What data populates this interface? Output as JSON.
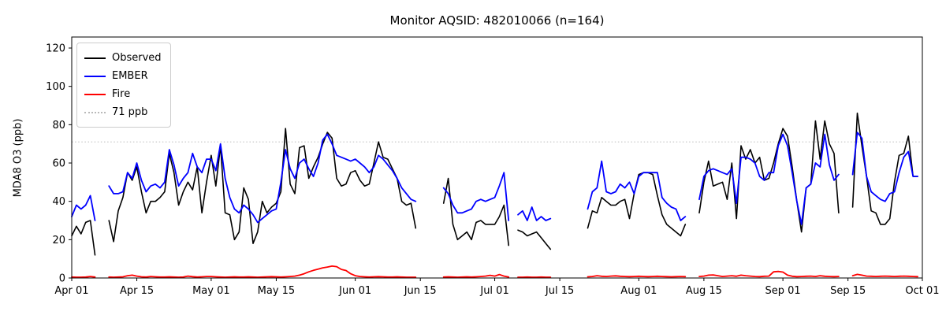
{
  "figure": {
    "title": "Monitor AQSID: 482010066 (n=164)",
    "ylabel": "MDA8 O3 (ppb)"
  },
  "legend": {
    "entries": [
      {
        "label": "Observed",
        "color": "#000000",
        "style": "solid"
      },
      {
        "label": "EMBER",
        "color": "#0000ff",
        "style": "solid"
      },
      {
        "label": "Fire",
        "color": "#ff0000",
        "style": "solid"
      },
      {
        "label": "71 ppb",
        "color": "#c9c9c9",
        "style": "dotted"
      }
    ]
  },
  "chart_data": {
    "type": "line",
    "title": "Monitor AQSID: 482010066 (n=164)",
    "xlabel": "",
    "ylabel": "MDA8 O3 (ppb)",
    "ylim": [
      0,
      126
    ],
    "yticks": [
      0,
      20,
      40,
      60,
      80,
      100,
      120
    ],
    "x_is_days_from": "Apr 01",
    "xlim_days": [
      0,
      183
    ],
    "xticks": [
      {
        "day": 0,
        "label": "Apr 01"
      },
      {
        "day": 14,
        "label": "Apr 15"
      },
      {
        "day": 30,
        "label": "May 01"
      },
      {
        "day": 44,
        "label": "May 15"
      },
      {
        "day": 61,
        "label": "Jun 01"
      },
      {
        "day": 75,
        "label": "Jun 15"
      },
      {
        "day": 91,
        "label": "Jul 01"
      },
      {
        "day": 105,
        "label": "Jul 15"
      },
      {
        "day": 122,
        "label": "Aug 01"
      },
      {
        "day": 136,
        "label": "Aug 15"
      },
      {
        "day": 153,
        "label": "Sep 01"
      },
      {
        "day": 167,
        "label": "Sep 15"
      },
      {
        "day": 183,
        "label": "Oct 01"
      }
    ],
    "threshold": {
      "value": 71,
      "label": "71 ppb",
      "color": "#c9c9c9",
      "style": "dotted"
    },
    "grid": false,
    "legend_position": "upper left",
    "n_observations": 164,
    "series": [
      {
        "name": "Observed",
        "color": "#000000",
        "width": 1.6,
        "values": [
          22,
          27,
          23,
          29,
          30,
          12,
          null,
          null,
          30,
          19,
          35,
          42,
          55,
          51,
          58,
          45,
          34,
          40,
          40,
          42,
          45,
          65,
          55,
          38,
          45,
          50,
          46,
          58,
          34,
          50,
          64,
          48,
          69,
          34,
          33,
          20,
          24,
          47,
          41,
          18,
          24,
          40,
          34,
          37,
          39,
          45,
          78,
          49,
          44,
          68,
          69,
          52,
          58,
          63,
          70,
          76,
          73,
          52,
          48,
          49,
          55,
          56,
          51,
          48,
          49,
          60,
          71,
          63,
          62,
          57,
          52,
          40,
          38,
          39,
          26,
          null,
          null,
          null,
          null,
          null,
          39,
          52,
          28,
          20,
          22,
          24,
          20,
          29,
          30,
          28,
          28,
          28,
          32,
          38,
          17,
          null,
          25,
          24,
          22,
          23,
          24,
          21,
          18,
          15,
          null,
          null,
          null,
          null,
          null,
          null,
          null,
          26,
          35,
          34,
          42,
          40,
          38,
          38,
          40,
          41,
          31,
          44,
          54,
          55,
          55,
          54,
          43,
          33,
          28,
          26,
          24,
          22,
          28,
          null,
          null,
          34,
          50,
          61,
          48,
          49,
          50,
          41,
          60,
          31,
          69,
          62,
          67,
          60,
          63,
          51,
          52,
          60,
          70,
          78,
          74,
          58,
          40,
          24,
          47,
          49,
          82,
          62,
          82,
          70,
          65,
          34,
          null,
          null,
          37,
          86,
          69,
          53,
          35,
          34,
          28,
          28,
          31,
          50,
          64,
          65,
          74,
          53,
          53
        ]
      },
      {
        "name": "EMBER",
        "color": "#0000ff",
        "width": 1.8,
        "values": [
          32,
          38,
          36,
          38,
          43,
          30,
          null,
          null,
          48,
          44,
          44,
          45,
          55,
          52,
          60,
          51,
          45,
          48,
          49,
          47,
          50,
          67,
          59,
          48,
          52,
          55,
          65,
          58,
          55,
          62,
          62,
          56,
          70,
          52,
          42,
          36,
          34,
          38,
          36,
          33,
          29,
          31,
          33,
          35,
          36,
          50,
          67,
          57,
          52,
          60,
          62,
          57,
          53,
          60,
          72,
          75,
          70,
          64,
          63,
          62,
          61,
          62,
          60,
          58,
          55,
          58,
          64,
          62,
          59,
          56,
          52,
          47,
          44,
          41,
          40,
          null,
          null,
          null,
          null,
          null,
          47,
          44,
          38,
          34,
          34,
          35,
          36,
          40,
          41,
          40,
          41,
          42,
          48,
          55,
          30,
          null,
          33,
          35,
          30,
          37,
          30,
          32,
          30,
          31,
          null,
          null,
          null,
          null,
          null,
          null,
          null,
          36,
          45,
          47,
          61,
          45,
          44,
          45,
          49,
          47,
          50,
          44,
          53,
          55,
          55,
          55,
          55,
          42,
          39,
          37,
          36,
          30,
          32,
          null,
          null,
          41,
          53,
          56,
          57,
          56,
          55,
          54,
          57,
          39,
          63,
          63,
          62,
          60,
          53,
          51,
          55,
          55,
          69,
          75,
          69,
          55,
          40,
          28,
          47,
          49,
          60,
          58,
          75,
          59,
          51,
          54,
          null,
          null,
          54,
          76,
          73,
          53,
          45,
          43,
          41,
          40,
          44,
          45,
          55,
          63,
          66,
          53,
          53
        ]
      },
      {
        "name": "Fire",
        "color": "#ff0000",
        "width": 1.8,
        "values": [
          0.5,
          0.4,
          0.4,
          0.5,
          0.8,
          0.5,
          null,
          null,
          0.5,
          0.4,
          0.5,
          0.6,
          1.2,
          1.5,
          1.0,
          0.6,
          0.5,
          0.8,
          0.6,
          0.5,
          0.5,
          0.6,
          0.5,
          0.4,
          0.5,
          1.0,
          0.7,
          0.5,
          0.6,
          0.8,
          0.8,
          0.6,
          0.5,
          0.4,
          0.5,
          0.6,
          0.5,
          0.5,
          0.6,
          0.5,
          0.4,
          0.5,
          0.6,
          0.7,
          0.6,
          0.5,
          0.6,
          0.8,
          1.0,
          1.5,
          2.2,
          3.2,
          4.0,
          4.6,
          5.3,
          5.7,
          6.2,
          5.9,
          4.5,
          3.9,
          2.2,
          1.2,
          0.8,
          0.6,
          0.5,
          0.6,
          0.7,
          0.6,
          0.5,
          0.5,
          0.6,
          0.5,
          0.4,
          0.4,
          0.4,
          null,
          null,
          null,
          null,
          null,
          0.5,
          0.6,
          0.5,
          0.4,
          0.5,
          0.6,
          0.5,
          0.6,
          0.8,
          1.0,
          1.4,
          1.0,
          1.8,
          1.0,
          0.5,
          null,
          0.4,
          0.4,
          0.5,
          0.4,
          0.4,
          0.5,
          0.4,
          0.4,
          null,
          null,
          null,
          null,
          null,
          null,
          null,
          0.6,
          0.8,
          1.2,
          0.9,
          0.8,
          1.0,
          1.1,
          0.9,
          0.8,
          0.7,
          0.8,
          0.9,
          0.8,
          0.7,
          0.8,
          0.9,
          0.8,
          0.7,
          0.6,
          0.7,
          0.8,
          0.7,
          null,
          null,
          0.8,
          1.0,
          1.5,
          1.6,
          1.2,
          0.8,
          1.0,
          1.2,
          0.9,
          1.5,
          1.2,
          1.0,
          0.8,
          0.7,
          0.9,
          1.0,
          3.2,
          3.4,
          3.1,
          1.5,
          0.9,
          0.7,
          0.8,
          0.9,
          1.0,
          0.8,
          1.2,
          0.9,
          0.8,
          0.7,
          0.8,
          null,
          null,
          1.2,
          1.9,
          1.5,
          1.0,
          0.9,
          0.8,
          0.9,
          1.0,
          0.9,
          0.8,
          0.9,
          1.0,
          0.9,
          0.8,
          0.7
        ]
      }
    ]
  }
}
